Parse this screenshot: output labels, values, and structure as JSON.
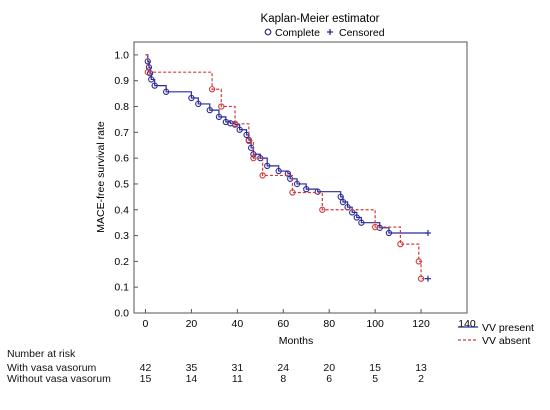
{
  "chart_data": {
    "type": "line",
    "title": "Kaplan-Meier estimator",
    "legend_top": [
      {
        "marker": "o",
        "label": "Complete",
        "color": "#2b2b9a"
      },
      {
        "marker": "+",
        "label": "Censored",
        "color": "#2b2b9a"
      }
    ],
    "xlabel": "Months",
    "ylabel": "MACE-free survival rate",
    "xlim": [
      -5,
      140
    ],
    "ylim": [
      0.0,
      1.05
    ],
    "x_ticks": [
      0,
      20,
      40,
      60,
      80,
      100,
      120,
      140
    ],
    "x_tick_labels": [
      "0",
      "20",
      "40",
      "60",
      "80",
      "100",
      "120",
      "140"
    ],
    "y_ticks": [
      0.0,
      0.1,
      0.2,
      0.3,
      0.4,
      0.5,
      0.6,
      0.7,
      0.8,
      0.9,
      1.0
    ],
    "y_tick_labels": [
      "0.0",
      "0.1",
      "0.2",
      "0.3",
      "0.4",
      "0.5",
      "0.6",
      "0.7",
      "0.8",
      "0.9",
      "1.0"
    ],
    "series": [
      {
        "name": "VV present",
        "color": "#2b2b9a",
        "dash": "solid",
        "steps": [
          [
            0,
            1.0
          ],
          [
            1,
            0.975
          ],
          [
            1.5,
            0.952
          ],
          [
            2,
            0.929
          ],
          [
            2.5,
            0.905
          ],
          [
            4,
            0.881
          ],
          [
            9,
            0.857
          ],
          [
            20,
            0.833
          ],
          [
            23,
            0.81
          ],
          [
            28,
            0.786
          ],
          [
            32,
            0.76
          ],
          [
            35,
            0.74
          ],
          [
            37,
            0.735
          ],
          [
            39,
            0.73
          ],
          [
            41,
            0.71
          ],
          [
            44,
            0.69
          ],
          [
            45,
            0.67
          ],
          [
            46,
            0.64
          ],
          [
            47,
            0.615
          ],
          [
            50,
            0.6
          ],
          [
            53,
            0.57
          ],
          [
            58,
            0.55
          ],
          [
            62,
            0.54
          ],
          [
            63,
            0.52
          ],
          [
            66,
            0.5
          ],
          [
            70,
            0.48
          ],
          [
            75,
            0.47
          ],
          [
            85,
            0.45
          ],
          [
            86,
            0.43
          ],
          [
            88,
            0.41
          ],
          [
            90,
            0.39
          ],
          [
            92,
            0.37
          ],
          [
            94,
            0.35
          ],
          [
            102,
            0.33
          ],
          [
            106,
            0.31
          ],
          [
            123,
            0.31
          ]
        ],
        "complete_points": [
          [
            1,
            0.975
          ],
          [
            1.5,
            0.952
          ],
          [
            2,
            0.929
          ],
          [
            2.5,
            0.905
          ],
          [
            4,
            0.881
          ],
          [
            9,
            0.857
          ],
          [
            20,
            0.833
          ],
          [
            23,
            0.81
          ],
          [
            28,
            0.786
          ],
          [
            32,
            0.76
          ],
          [
            35,
            0.74
          ],
          [
            37,
            0.735
          ],
          [
            39,
            0.73
          ],
          [
            41,
            0.71
          ],
          [
            44,
            0.69
          ],
          [
            45,
            0.67
          ],
          [
            46,
            0.64
          ],
          [
            47,
            0.615
          ],
          [
            50,
            0.6
          ],
          [
            53,
            0.57
          ],
          [
            58,
            0.55
          ],
          [
            62,
            0.54
          ],
          [
            63,
            0.52
          ],
          [
            66,
            0.5
          ],
          [
            70,
            0.48
          ],
          [
            75,
            0.47
          ],
          [
            85,
            0.45
          ],
          [
            86,
            0.43
          ],
          [
            88,
            0.41
          ],
          [
            90,
            0.39
          ],
          [
            92,
            0.37
          ],
          [
            94,
            0.35
          ],
          [
            102,
            0.33
          ],
          [
            106,
            0.31
          ]
        ],
        "censored_points": [
          [
            123,
            0.31
          ]
        ]
      },
      {
        "name": "VV absent",
        "color": "#d23a3a",
        "dash": "dashed",
        "steps": [
          [
            0,
            1.0
          ],
          [
            1,
            0.933
          ],
          [
            29,
            0.867
          ],
          [
            33,
            0.8
          ],
          [
            39,
            0.733
          ],
          [
            45,
            0.667
          ],
          [
            47,
            0.6
          ],
          [
            51,
            0.533
          ],
          [
            64,
            0.467
          ],
          [
            77,
            0.4
          ],
          [
            100,
            0.333
          ],
          [
            111,
            0.267
          ],
          [
            119,
            0.2
          ],
          [
            120,
            0.133
          ],
          [
            123,
            0.133
          ]
        ],
        "complete_points": [
          [
            1,
            0.933
          ],
          [
            29,
            0.867
          ],
          [
            33,
            0.8
          ],
          [
            39,
            0.733
          ],
          [
            45,
            0.667
          ],
          [
            47,
            0.6
          ],
          [
            51,
            0.533
          ],
          [
            64,
            0.467
          ],
          [
            77,
            0.4
          ],
          [
            100,
            0.333
          ],
          [
            111,
            0.267
          ],
          [
            119,
            0.2
          ],
          [
            120,
            0.133
          ]
        ],
        "censored_points": [
          [
            123,
            0.133
          ]
        ]
      }
    ],
    "grid": false,
    "legend_placement": "bottom-right"
  },
  "risk_table": {
    "header": "Number at risk",
    "rows": [
      {
        "label": "With vasa vasorum",
        "values": [
          "42",
          "35",
          "31",
          "24",
          "20",
          "15",
          "13"
        ]
      },
      {
        "label": "Without vasa vasorum",
        "values": [
          "15",
          "14",
          "11",
          "8",
          "6",
          "5",
          "2"
        ]
      }
    ],
    "times": [
      0,
      20,
      40,
      60,
      80,
      100,
      120
    ]
  }
}
